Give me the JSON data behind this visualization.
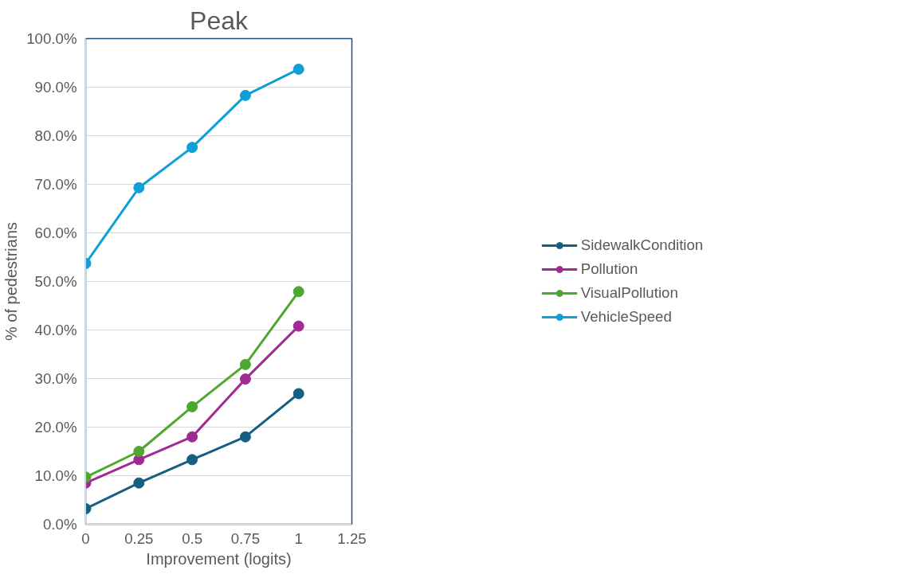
{
  "chart_data": {
    "type": "line",
    "title": "Peak",
    "xlabel": "Improvement (logits)",
    "ylabel": "% of pedestrians",
    "x": [
      0,
      0.25,
      0.5,
      0.75,
      1
    ],
    "series": [
      {
        "name": "SidewalkCondition",
        "color": "#156082",
        "values": [
          3.2,
          8.5,
          13.3,
          18.0,
          26.9
        ]
      },
      {
        "name": "Pollution",
        "color": "#a02b93",
        "values": [
          8.5,
          13.3,
          18.0,
          29.9,
          40.8
        ]
      },
      {
        "name": "VisualPollution",
        "color": "#4ea72e",
        "values": [
          9.7,
          15.0,
          24.2,
          32.9,
          47.9
        ]
      },
      {
        "name": "VehicleSpeed",
        "color": "#0f9ed5",
        "values": [
          53.7,
          69.3,
          77.6,
          88.3,
          93.7
        ]
      }
    ],
    "xlim": [
      0,
      1.25
    ],
    "xticks": [
      0,
      0.25,
      0.5,
      0.75,
      1,
      1.25
    ],
    "ylim": [
      0,
      100
    ],
    "yticks": [
      {
        "value": 0,
        "label": "0.0%"
      },
      {
        "value": 10,
        "label": "10.0%"
      },
      {
        "value": 20,
        "label": "20.0%"
      },
      {
        "value": 30,
        "label": "30.0%"
      },
      {
        "value": 40,
        "label": "40.0%"
      },
      {
        "value": 50,
        "label": "50.0%"
      },
      {
        "value": 60,
        "label": "60.0%"
      },
      {
        "value": 70,
        "label": "70.0%"
      },
      {
        "value": 80,
        "label": "80.0%"
      },
      {
        "value": 90,
        "label": "90.0%"
      },
      {
        "value": 100,
        "label": "100.0%"
      }
    ],
    "grid": "y",
    "legend": "right",
    "marker": "circle",
    "line_style": "solid"
  }
}
